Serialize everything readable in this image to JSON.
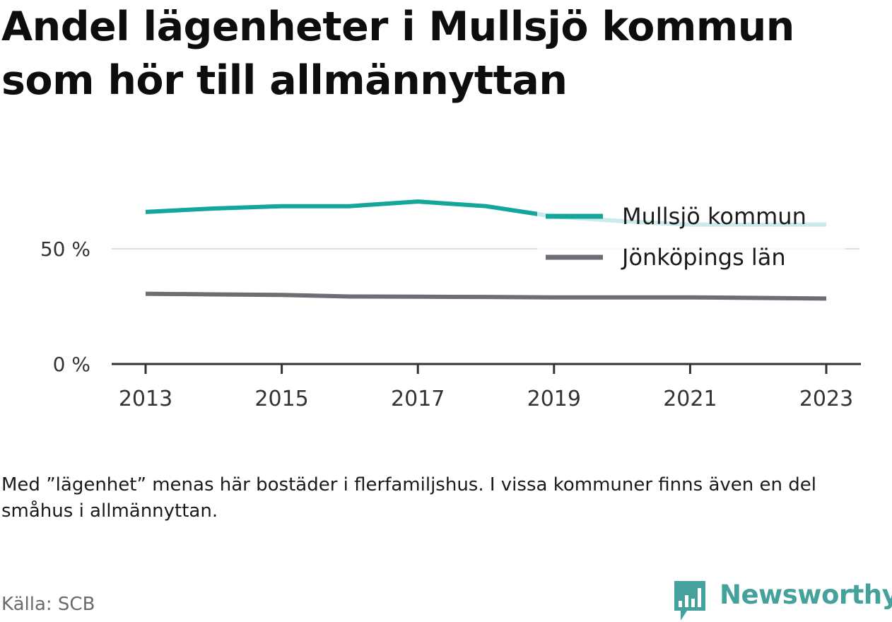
{
  "title": "Andel lägenheter i Mullsjö kommun som hör till allmännyttan",
  "note": "Med ”lägenhet” menas här bostäder i flerfamiljshus. I vissa kommuner finns även en del småhus i allmännyttan.",
  "source": "Källa: SCB",
  "brand": "Newsworthy",
  "colors": {
    "mullsjo": "#14a69a",
    "lan": "#6d6d74",
    "axis": "#333333",
    "grid": "#dddddd",
    "brand": "#45a19b"
  },
  "chart_data": {
    "type": "line",
    "x": [
      2013,
      2014,
      2015,
      2016,
      2017,
      2018,
      2019,
      2020,
      2021,
      2022,
      2023
    ],
    "x_ticks": [
      "2013",
      "2015",
      "2017",
      "2019",
      "2021",
      "2023"
    ],
    "y_ticks": [
      "0 %",
      "50 %"
    ],
    "ylim": [
      0,
      75
    ],
    "grid": true,
    "legend_position": "top-right",
    "series": [
      {
        "name": "Mullsjö kommun",
        "values": [
          66,
          67.5,
          68.5,
          68.5,
          70.5,
          68.5,
          64,
          62,
          60.5,
          60.5,
          60.5
        ]
      },
      {
        "name": "Jönköpings län",
        "values": [
          30.5,
          30.2,
          30,
          29.3,
          29.2,
          29.1,
          28.9,
          28.9,
          28.9,
          28.7,
          28.4
        ]
      }
    ]
  }
}
